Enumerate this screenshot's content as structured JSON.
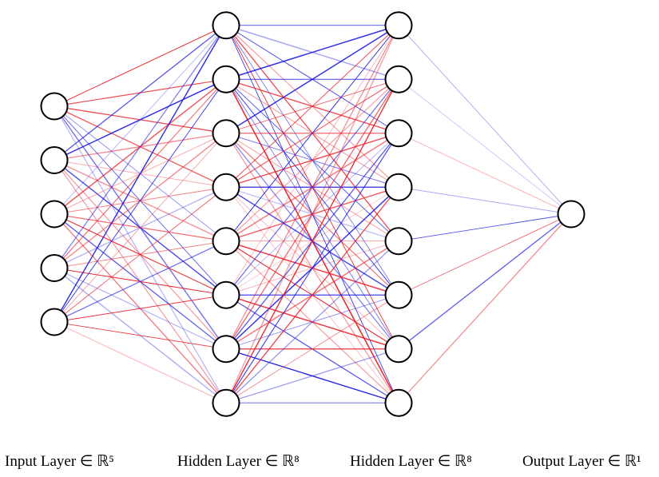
{
  "diagram": {
    "type": "neural-network",
    "layers": [
      {
        "label": "Input Layer ∈ ℝ⁵",
        "units": 5
      },
      {
        "label": "Hidden Layer ∈ ℝ⁸",
        "units": 8
      },
      {
        "label": "Hidden Layer ∈ ℝ⁸",
        "units": 8
      },
      {
        "label": "Output Layer ∈ ℝ¹",
        "units": 1
      }
    ],
    "connections": "fully-connected",
    "colors": {
      "positive_weight": "#e8202a",
      "negative_weight": "#1c1ce0",
      "node_fill": "#ffffff",
      "node_stroke": "#000000"
    }
  }
}
